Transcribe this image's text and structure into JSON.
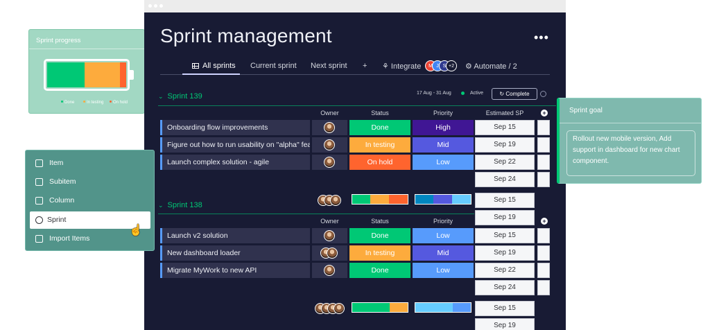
{
  "board": {
    "title": "Sprint management",
    "more_icon": "more-horizontal-icon",
    "tabs": {
      "all_sprints": "All sprints",
      "current_sprint": "Current sprint",
      "next_sprint": "Next sprint",
      "add": "+",
      "integrate": "Integrate",
      "integrate_more": "+2",
      "automate": "Automate / 2"
    },
    "columns": {
      "owner": "Owner",
      "status": "Status",
      "priority": "Priority",
      "estimated": "Estimated SP"
    },
    "groups": [
      {
        "name": "Sprint 139",
        "dates": "17 Aug - 31 Aug",
        "state": "Active",
        "complete_label": "Complete",
        "rows": [
          {
            "name": "Onboarding flow improvements",
            "status": "Done",
            "priority": "High"
          },
          {
            "name": "Figure out how to run usability on \"alpha\" feature",
            "status": "In testing",
            "priority": "Mid"
          },
          {
            "name": "Launch complex solution - agile",
            "status": "On hold",
            "priority": "Low"
          }
        ],
        "dates_col": [
          "Sep 15",
          "Sep 19",
          "Sep 22",
          "Sep 24"
        ]
      },
      {
        "name": "Sprint 138",
        "rows": [
          {
            "name": "Launch v2 solution",
            "status": "Done",
            "priority": "Low"
          },
          {
            "name": "New dashboard loader",
            "status": "In testing",
            "priority": "Mid"
          },
          {
            "name": "Migrate MyWork to new API",
            "status": "Done",
            "priority": "Low"
          }
        ],
        "summary_dates": [
          "Sep 15",
          "Sep 19"
        ],
        "dates_col": [
          "Sep 15",
          "Sep 19",
          "Sep 22",
          "Sep 24"
        ]
      }
    ],
    "bottom_dates": [
      "Sep 15",
      "Sep 19"
    ]
  },
  "colors": {
    "done": "#00c875",
    "in_testing": "#fdab3d",
    "on_hold": "#ff642e",
    "high": "#401694",
    "mid": "#5559df",
    "low": "#579bfc"
  },
  "sprint_progress": {
    "title": "Sprint progress",
    "legend": [
      "Done",
      "In testing",
      "On hold"
    ],
    "fraction": {
      "done": 0.47,
      "in_testing": 0.45,
      "on_hold": 0.08
    }
  },
  "add_menu": {
    "items": [
      {
        "label": "Item",
        "icon": "item-icon"
      },
      {
        "label": "Subitem",
        "icon": "subitem-icon"
      },
      {
        "label": "Column",
        "icon": "column-icon"
      },
      {
        "label": "Sprint",
        "icon": "sprint-icon"
      },
      {
        "label": "Import Items",
        "icon": "import-icon"
      }
    ]
  },
  "sprint_goal": {
    "title": "Sprint goal",
    "text": "Rollout new mobile version, Add support in dashboard for new chart component."
  }
}
